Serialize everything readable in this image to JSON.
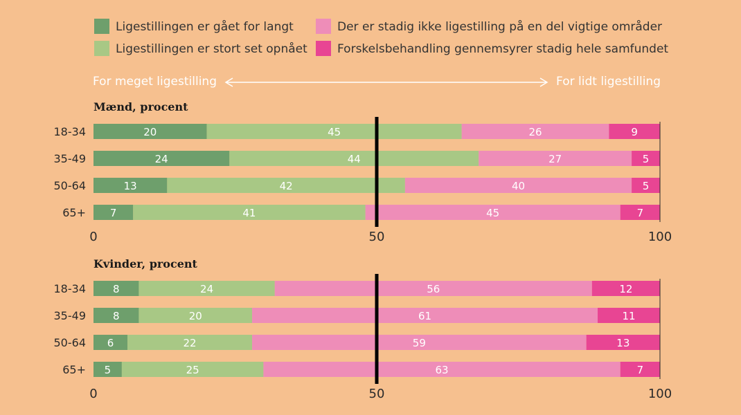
{
  "legend": [
    {
      "label": "Ligestillingen er gået for langt",
      "color": "#6E9F6C"
    },
    {
      "label": "Ligestillingen er stort set opnået",
      "color": "#A8C885"
    },
    {
      "label": "Der er stadig ikke ligestilling på en del vigtige områder",
      "color": "#EE8DB8"
    },
    {
      "label": "Forskelsbehandling gennemsyrer stadig hele samfundet",
      "color": "#E84593"
    }
  ],
  "scale": {
    "left_label": "For meget ligestilling",
    "right_label": "For lidt ligestilling"
  },
  "chart_data": [
    {
      "type": "bar",
      "orientation": "horizontal",
      "stacked": true,
      "title": "Mænd, procent",
      "categories": [
        "18-34",
        "35-49",
        "50-64",
        "65+"
      ],
      "series": [
        {
          "name": "Ligestillingen er gået for langt",
          "values": [
            20,
            24,
            13,
            7
          ]
        },
        {
          "name": "Ligestillingen er stort set opnået",
          "values": [
            45,
            44,
            42,
            41
          ]
        },
        {
          "name": "Der er stadig ikke ligestilling på en del vigtige områder",
          "values": [
            26,
            27,
            40,
            45
          ]
        },
        {
          "name": "Forskelsbehandling gennemsyrer stadig hele samfundet",
          "values": [
            9,
            5,
            5,
            7
          ]
        }
      ],
      "xlim": [
        0,
        100
      ],
      "xticks": [
        0,
        50,
        100
      ],
      "reference_line": 50
    },
    {
      "type": "bar",
      "orientation": "horizontal",
      "stacked": true,
      "title": "Kvinder, procent",
      "categories": [
        "18-34",
        "35-49",
        "50-64",
        "65+"
      ],
      "series": [
        {
          "name": "Ligestillingen er gået for langt",
          "values": [
            8,
            8,
            6,
            5
          ]
        },
        {
          "name": "Ligestillingen er stort set opnået",
          "values": [
            24,
            20,
            22,
            25
          ]
        },
        {
          "name": "Der er stadig ikke ligestilling på en del vigtige områder",
          "values": [
            56,
            61,
            59,
            63
          ]
        },
        {
          "name": "Forskelsbehandling gennemsyrer stadig hele samfundet",
          "values": [
            12,
            11,
            13,
            7
          ]
        }
      ],
      "xlim": [
        0,
        100
      ],
      "xticks": [
        0,
        50,
        100
      ],
      "reference_line": 50
    }
  ]
}
